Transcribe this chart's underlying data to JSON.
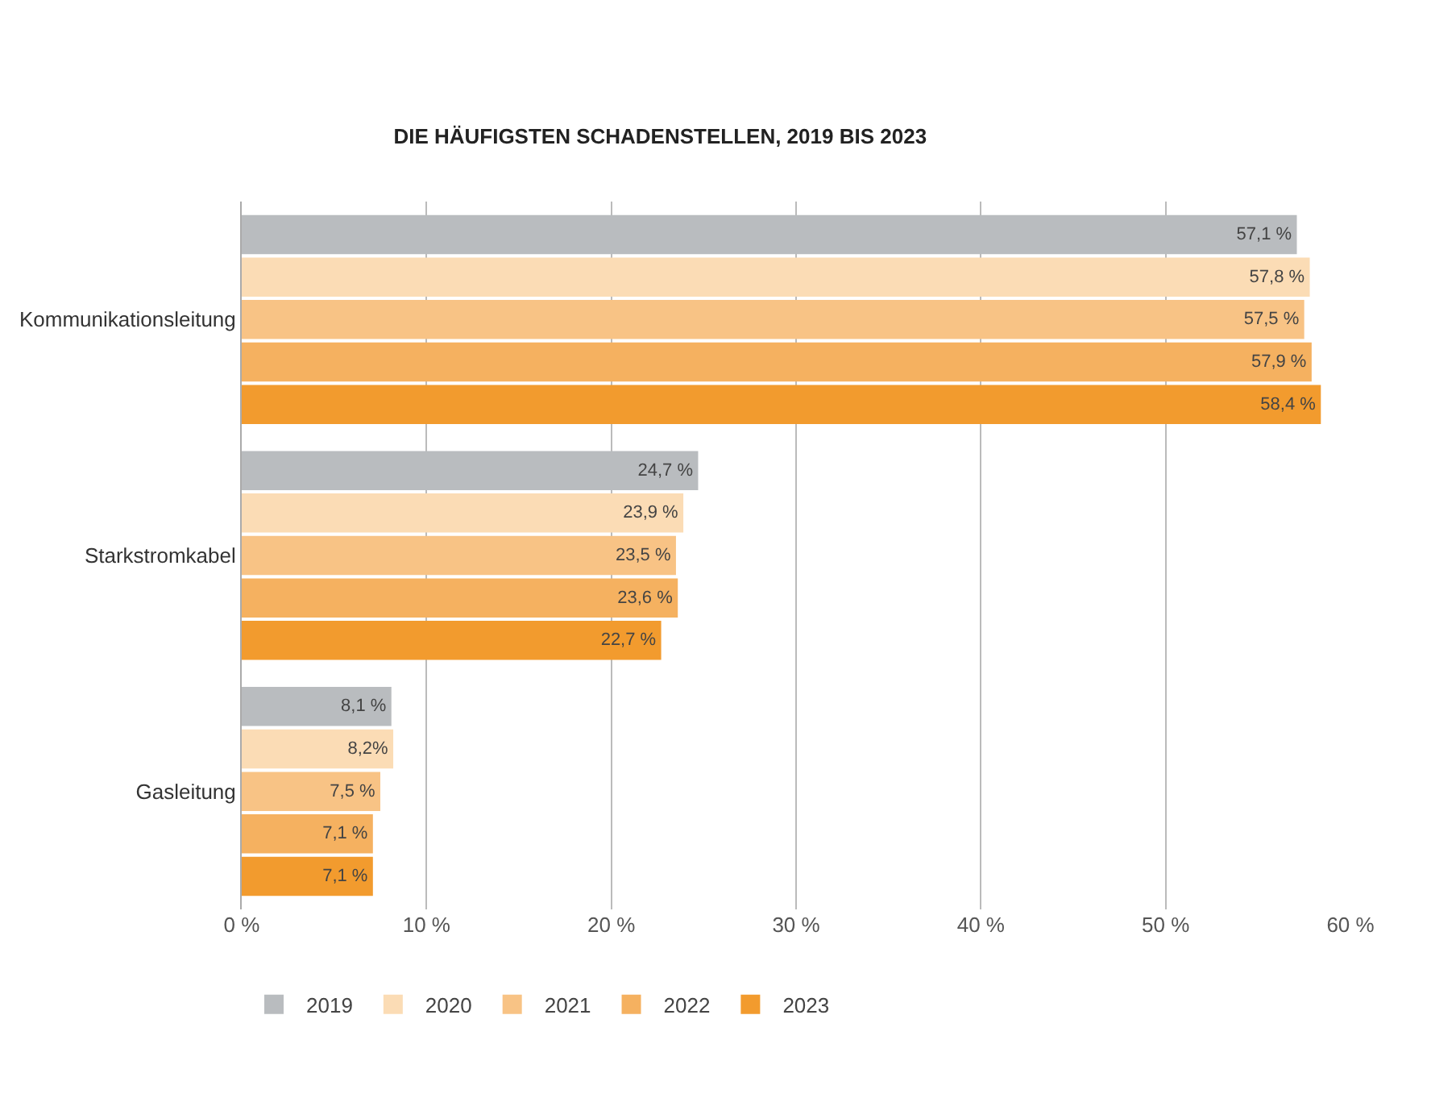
{
  "chart_data": {
    "type": "bar",
    "orientation": "horizontal",
    "title": "DIE HÄUFIGSTEN SCHADENSTELLEN, 2019 BIS 2023",
    "categories": [
      "Kommunikationsleitung",
      "Starkstromkabel",
      "Gasleitung"
    ],
    "series": [
      {
        "name": "2019",
        "color": "#b9bcbf",
        "values": [
          57.1,
          24.7,
          8.1
        ],
        "value_labels": [
          "57,1 %",
          "24,7 %",
          "8,1 %"
        ]
      },
      {
        "name": "2020",
        "color": "#fbdcb5",
        "values": [
          57.8,
          23.9,
          8.2
        ],
        "value_labels": [
          "57,8 %",
          "23,9 %",
          "8,2%"
        ]
      },
      {
        "name": "2021",
        "color": "#f8c385",
        "values": [
          57.5,
          23.5,
          7.5
        ],
        "value_labels": [
          "57,5 %",
          "23,5 %",
          "7,5 %"
        ]
      },
      {
        "name": "2022",
        "color": "#f5b160",
        "values": [
          57.9,
          23.6,
          7.1
        ],
        "value_labels": [
          "57,9 %",
          "23,6 %",
          "7,1 %"
        ]
      },
      {
        "name": "2023",
        "color": "#f29b2e",
        "values": [
          58.4,
          22.7,
          7.1
        ],
        "value_labels": [
          "58,4 %",
          "22,7 %",
          "7,1 %"
        ]
      }
    ],
    "xlim": [
      0,
      60
    ],
    "xticks": [
      {
        "value": 0,
        "label": "0 %"
      },
      {
        "value": 10,
        "label": "10 %"
      },
      {
        "value": 20,
        "label": "20 %"
      },
      {
        "value": 30,
        "label": "30 %"
      },
      {
        "value": 40,
        "label": "40 %"
      },
      {
        "value": 50,
        "label": "50 %"
      },
      {
        "value": 60,
        "label": "60 %"
      }
    ],
    "grid": "x",
    "legend": "bottom"
  }
}
